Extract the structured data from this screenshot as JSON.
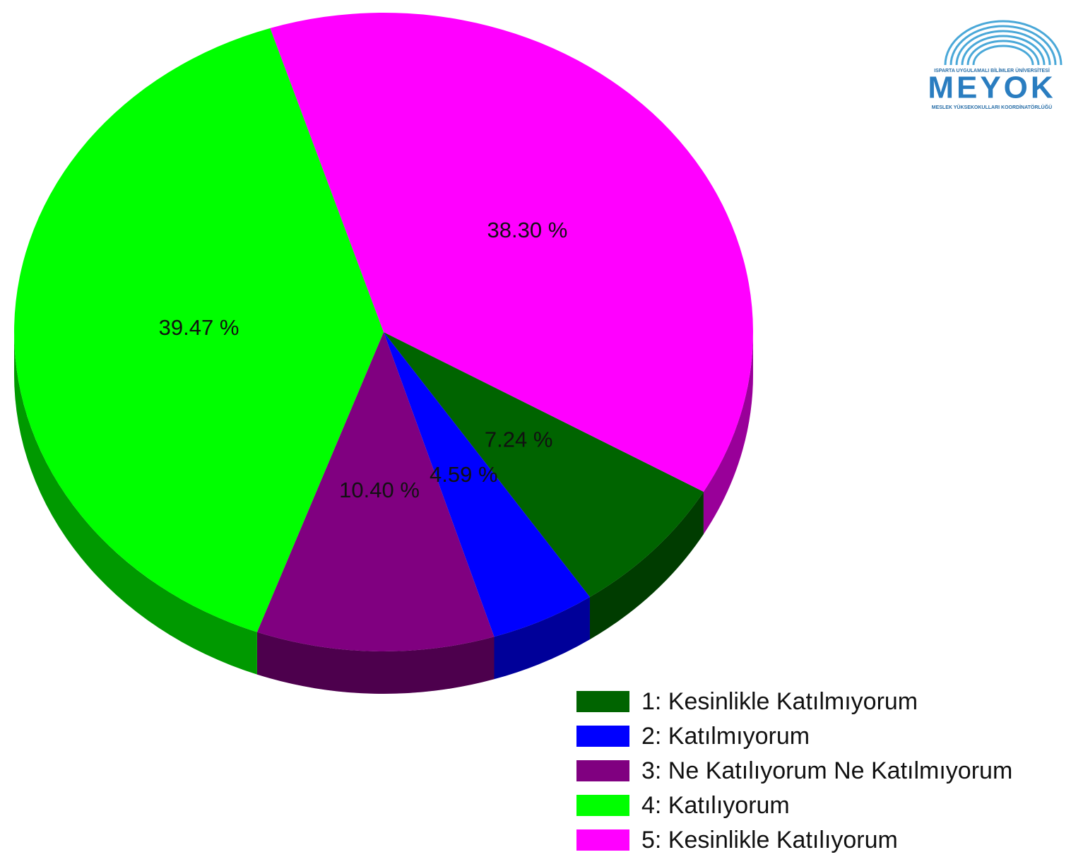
{
  "chart_data": {
    "type": "pie",
    "categories": [
      "1: Kesinlikle Katılmıyorum",
      "2: Katılmıyorum",
      "3: Ne Katılıyorum Ne Katılmıyorum",
      "4: Katılıyorum",
      "5: Kesinlikle Katılıyorum"
    ],
    "values": [
      7.24,
      4.59,
      10.4,
      39.47,
      38.3
    ],
    "value_labels": [
      "7.24 %",
      "4.59 %",
      "10.40 %",
      "39.47 %",
      "38.30 %"
    ],
    "colors": [
      "#006400",
      "#0000ff",
      "#800080",
      "#00ff00",
      "#ff00ff"
    ],
    "legend": "bottom-right"
  },
  "logo": {
    "top": "ISPARTA UYGULAMALI BİLİMLER ÜNİVERSİTESİ",
    "name": "MEYOK",
    "bottom": "MESLEK YÜKSEKOKULLARI KOORDİNATÖRLÜĞÜ"
  }
}
